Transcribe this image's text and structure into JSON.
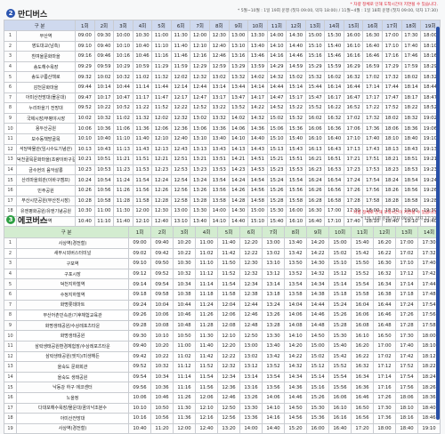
{
  "section1": {
    "number": "2",
    "title": "만디버스",
    "badge_color": "#2c55b0",
    "note_line1": "* 차량 정체로 인해 도착시간이 지연될 수 있습니다.",
    "note_line2": "* 5월~10월 : 1일 19회 운행 (첫차 09:00, 막차 18:00) / 11월~4월 : 1일 18회 운행 (첫차 09:00, 막차 17:30)",
    "headers": [
      "구 분",
      "1회",
      "2회",
      "3회",
      "4회",
      "5회",
      "6회",
      "7회",
      "8회",
      "9회",
      "10회",
      "11회",
      "12회",
      "13회",
      "14회",
      "15회",
      "16회",
      "17회",
      "18회",
      "19회"
    ],
    "rows": [
      {
        "n": "1",
        "stop": "부산역",
        "t": [
          "09:00",
          "09:30",
          "10:00",
          "10:30",
          "11:00",
          "11:30",
          "12:00",
          "12:30",
          "13:00",
          "13:30",
          "14:00",
          "14:30",
          "15:00",
          "15:30",
          "16:00",
          "16:30",
          "17:00",
          "17:30",
          "18:00"
        ]
      },
      {
        "n": "2",
        "stop": "영도대교(남측)",
        "t": [
          "09:10",
          "09:40",
          "10:10",
          "10:40",
          "11:10",
          "11:40",
          "12:10",
          "12:40",
          "13:10",
          "13:40",
          "14:10",
          "14:40",
          "15:10",
          "15:40",
          "16:10",
          "16:40",
          "17:10",
          "17:40",
          "18:10"
        ]
      },
      {
        "n": "3",
        "stop": "흰여울문화마을",
        "t": [
          "09:16",
          "09:46",
          "10:16",
          "10:46",
          "11:16",
          "11:46",
          "12:16",
          "12:46",
          "13:16",
          "13:46",
          "14:16",
          "14:46",
          "15:16",
          "15:46",
          "16:16",
          "16:46",
          "17:16",
          "17:46",
          "18:16"
        ]
      },
      {
        "n": "4",
        "stop": "송도해수욕장",
        "t": [
          "09:29",
          "09:59",
          "10:29",
          "10:59",
          "11:29",
          "11:59",
          "12:29",
          "12:59",
          "13:29",
          "13:59",
          "14:29",
          "14:59",
          "15:29",
          "15:59",
          "16:29",
          "16:59",
          "17:29",
          "17:59",
          "18:29"
        ]
      },
      {
        "n": "5",
        "stop": "송도구름산책로",
        "t": [
          "09:32",
          "10:02",
          "10:32",
          "11:02",
          "11:32",
          "12:02",
          "12:32",
          "13:02",
          "13:32",
          "14:02",
          "14:32",
          "15:02",
          "15:32",
          "16:02",
          "16:32",
          "17:02",
          "17:32",
          "18:02",
          "18:32"
        ]
      },
      {
        "n": "6",
        "stop": "감천문화마을",
        "t": [
          "09:44",
          "10:14",
          "10:44",
          "11:14",
          "11:44",
          "12:14",
          "12:44",
          "13:14",
          "13:44",
          "14:14",
          "14:44",
          "15:14",
          "15:44",
          "16:14",
          "16:44",
          "17:14",
          "17:44",
          "18:14",
          "18:44"
        ]
      },
      {
        "n": "7",
        "stop": "아미산전망대(몰운대)",
        "t": [
          "09:47",
          "10:17",
          "10:47",
          "11:17",
          "11:47",
          "12:17",
          "12:47",
          "13:17",
          "13:47",
          "14:17",
          "14:47",
          "15:17",
          "15:47",
          "16:17",
          "16:47",
          "17:17",
          "17:47",
          "18:17",
          "18:47"
        ]
      },
      {
        "n": "8",
        "stop": "누리마을기 전망대",
        "t": [
          "09:52",
          "10:22",
          "10:52",
          "11:22",
          "11:52",
          "12:22",
          "12:52",
          "13:22",
          "13:52",
          "14:22",
          "14:52",
          "15:22",
          "15:52",
          "16:22",
          "16:52",
          "17:22",
          "17:52",
          "18:22",
          "18:52"
        ]
      },
      {
        "n": "9",
        "stop": "국제시장/부평야시장",
        "t": [
          "10:02",
          "10:32",
          "11:02",
          "11:32",
          "12:02",
          "12:32",
          "13:02",
          "13:32",
          "14:02",
          "14:32",
          "15:02",
          "15:32",
          "16:02",
          "16:32",
          "17:02",
          "17:32",
          "18:02",
          "18:32",
          "19:02"
        ]
      },
      {
        "n": "10",
        "stop": "용두산공원",
        "t": [
          "10:06",
          "10:36",
          "11:06",
          "11:36",
          "12:06",
          "12:36",
          "13:06",
          "13:36",
          "14:06",
          "14:36",
          "15:06",
          "15:36",
          "16:06",
          "16:36",
          "17:06",
          "17:36",
          "18:06",
          "18:36",
          "19:06"
        ]
      },
      {
        "n": "11",
        "stop": "보수동책방골목",
        "t": [
          "10:10",
          "10:40",
          "11:10",
          "11:40",
          "12:10",
          "12:40",
          "13:10",
          "13:40",
          "14:10",
          "14:40",
          "15:10",
          "15:40",
          "16:10",
          "16:40",
          "17:10",
          "17:40",
          "18:10",
          "18:40",
          "19:10"
        ]
      },
      {
        "n": "12",
        "stop": "석당박물관(임시수도기념관)",
        "t": [
          "10:13",
          "10:43",
          "11:13",
          "11:43",
          "12:13",
          "12:43",
          "13:13",
          "13:43",
          "14:13",
          "14:43",
          "15:13",
          "15:43",
          "16:13",
          "16:43",
          "17:13",
          "17:43",
          "18:13",
          "18:43",
          "19:13"
        ]
      },
      {
        "n": "13",
        "stop": "덕천골목문화마을(초량이바구길)",
        "t": [
          "10:21",
          "10:51",
          "11:21",
          "11:51",
          "12:21",
          "12:51",
          "13:21",
          "13:51",
          "14:21",
          "14:51",
          "15:21",
          "15:51",
          "16:21",
          "16:51",
          "17:21",
          "17:51",
          "18:21",
          "18:51",
          "19:21"
        ]
      },
      {
        "n": "14",
        "stop": "금수현의 음악살롱",
        "t": [
          "10:23",
          "10:53",
          "11:23",
          "11:53",
          "12:23",
          "12:53",
          "13:23",
          "13:53",
          "14:23",
          "14:53",
          "15:23",
          "15:53",
          "16:23",
          "16:53",
          "17:23",
          "17:53",
          "18:23",
          "18:53",
          "19:23"
        ]
      },
      {
        "n": "15",
        "stop": "산리마을회관(이바구캠프)",
        "t": [
          "10:24",
          "10:54",
          "11:24",
          "11:54",
          "12:24",
          "12:54",
          "13:24",
          "13:54",
          "14:24",
          "14:54",
          "15:24",
          "15:54",
          "16:24",
          "16:54",
          "17:24",
          "17:54",
          "18:24",
          "18:54",
          "19:24"
        ]
      },
      {
        "n": "16",
        "stop": "민주공원",
        "t": [
          "10:26",
          "10:56",
          "11:26",
          "11:56",
          "12:26",
          "12:56",
          "13:26",
          "13:56",
          "14:26",
          "14:56",
          "15:26",
          "15:56",
          "16:26",
          "16:56",
          "17:26",
          "17:56",
          "18:26",
          "18:56",
          "19:26"
        ]
      },
      {
        "n": "17",
        "stop": "부산시민공원(부산진시장)",
        "t": [
          "10:28",
          "10:58",
          "11:28",
          "11:58",
          "12:28",
          "12:58",
          "13:28",
          "13:58",
          "14:28",
          "14:58",
          "15:28",
          "15:58",
          "16:28",
          "16:58",
          "17:28",
          "17:58",
          "18:28",
          "18:58",
          "19:28"
        ]
      },
      {
        "n": "18",
        "stop": "유엔평화공원/유엔기념공원",
        "t": [
          "10:30",
          "11:00",
          "11:30",
          "12:00",
          "12:30",
          "13:00",
          "13:30",
          "14:00",
          "14:30",
          "15:00",
          "15:30",
          "16:00",
          "16:30",
          "17:00",
          "17:30",
          "18:00",
          "18:30",
          "19:00",
          "19:30"
        ]
      },
      {
        "n": "19",
        "stop": "부산역",
        "t": [
          "10:40",
          "11:10",
          "11:40",
          "12:10",
          "12:40",
          "13:10",
          "13:40",
          "14:10",
          "14:40",
          "15:10",
          "15:40",
          "16:10",
          "16:40",
          "17:10",
          "17:40",
          "18:10",
          "18:40",
          "19:10",
          "19:40"
        ]
      }
    ]
  },
  "section2": {
    "number": "3",
    "title": "에코버스",
    "badge_color": "#2ea043",
    "note_line1": "* 차량 정체로 인해 도착시간이 지연될 수 있습니다.",
    "note_line2": "* 1일 14회 운행 (첫차 09:00, 막차 17:30)",
    "headers": [
      "구 분",
      "1회",
      "2회",
      "3회",
      "4회",
      "5회",
      "6회",
      "7회",
      "8회",
      "9회",
      "10회",
      "11회",
      "12회",
      "13회",
      "14회"
    ],
    "rows": [
      {
        "n": "1",
        "stop": "사상역(경전철)",
        "t": [
          "09:00",
          "09:40",
          "10:20",
          "11:00",
          "11:40",
          "12:20",
          "13:00",
          "13:40",
          "14:20",
          "15:00",
          "15:40",
          "16:20",
          "17:00",
          "17:30"
        ]
      },
      {
        "n": "2",
        "stop": "새부시외버스터미널",
        "t": [
          "09:02",
          "09:42",
          "10:22",
          "11:02",
          "11:42",
          "12:22",
          "13:02",
          "13:42",
          "14:22",
          "15:02",
          "15:42",
          "16:22",
          "17:02",
          "17:32"
        ]
      },
      {
        "n": "3",
        "stop": "구포역",
        "t": [
          "09:10",
          "09:50",
          "10:30",
          "11:10",
          "11:50",
          "12:30",
          "13:10",
          "13:50",
          "14:30",
          "15:10",
          "15:50",
          "16:30",
          "17:10",
          "17:40"
        ]
      },
      {
        "n": "4",
        "stop": "구포시장",
        "t": [
          "09:12",
          "09:52",
          "10:32",
          "11:12",
          "11:52",
          "12:32",
          "13:12",
          "13:52",
          "14:32",
          "15:12",
          "15:52",
          "16:32",
          "17:12",
          "17:42"
        ]
      },
      {
        "n": "5",
        "stop": "덕천지하철역",
        "t": [
          "09:14",
          "09:54",
          "10:34",
          "11:14",
          "11:54",
          "12:34",
          "13:14",
          "13:54",
          "14:34",
          "15:14",
          "15:54",
          "16:34",
          "17:14",
          "17:44"
        ]
      },
      {
        "n": "6",
        "stop": "수정지하철역",
        "t": [
          "09:18",
          "09:58",
          "10:38",
          "11:18",
          "11:58",
          "12:38",
          "13:18",
          "13:58",
          "14:38",
          "15:18",
          "15:58",
          "16:38",
          "17:18",
          "17:48"
        ]
      },
      {
        "n": "7",
        "stop": "화명롯데마트",
        "t": [
          "09:24",
          "10:04",
          "10:44",
          "11:24",
          "12:04",
          "12:44",
          "13:24",
          "14:04",
          "14:44",
          "15:24",
          "16:04",
          "16:44",
          "17:24",
          "17:54"
        ]
      },
      {
        "n": "8",
        "stop": "부산어촌민속관/기후체험교육관",
        "t": [
          "09:26",
          "10:06",
          "10:46",
          "11:26",
          "12:06",
          "12:46",
          "13:26",
          "14:06",
          "14:46",
          "15:26",
          "16:06",
          "16:46",
          "17:26",
          "17:56"
        ]
      },
      {
        "n": "9",
        "stop": "화명생태공원/수상레포츠타운",
        "t": [
          "09:28",
          "10:08",
          "10:48",
          "11:28",
          "12:08",
          "12:48",
          "13:28",
          "14:08",
          "14:48",
          "15:28",
          "16:08",
          "16:48",
          "17:28",
          "17:58"
        ]
      },
      {
        "n": "10",
        "stop": "화명생태공원",
        "t": [
          "09:30",
          "10:10",
          "10:50",
          "11:30",
          "12:10",
          "12:50",
          "13:30",
          "14:10",
          "14:50",
          "15:30",
          "16:10",
          "16:50",
          "17:30",
          "18:00"
        ]
      },
      {
        "n": "11",
        "stop": "삼락생태공원환경체험장/수상레포츠타운",
        "t": [
          "09:40",
          "10:20",
          "11:00",
          "11:40",
          "12:20",
          "13:00",
          "13:40",
          "14:20",
          "15:00",
          "15:40",
          "16:20",
          "17:00",
          "17:40",
          "18:10"
        ]
      },
      {
        "n": "12",
        "stop": "삼락생태공원(엣지)/미생해든",
        "t": [
          "09:42",
          "10:22",
          "11:02",
          "11:42",
          "12:22",
          "13:02",
          "13:42",
          "14:22",
          "15:02",
          "15:42",
          "16:22",
          "17:02",
          "17:42",
          "18:12"
        ]
      },
      {
        "n": "13",
        "stop": "을숙도 문화회관",
        "t": [
          "09:52",
          "10:32",
          "11:12",
          "11:52",
          "12:32",
          "13:12",
          "13:52",
          "14:32",
          "15:12",
          "15:52",
          "16:32",
          "17:12",
          "17:52",
          "18:22"
        ]
      },
      {
        "n": "14",
        "stop": "을숙도 생태공원",
        "t": [
          "09:54",
          "10:34",
          "11:14",
          "11:54",
          "12:34",
          "13:14",
          "13:54",
          "14:34",
          "15:14",
          "15:54",
          "16:34",
          "17:14",
          "17:54",
          "18:24"
        ]
      },
      {
        "n": "15",
        "stop": "낙동강 하구 에코센터",
        "t": [
          "09:56",
          "10:36",
          "11:16",
          "11:56",
          "12:36",
          "13:16",
          "13:56",
          "14:36",
          "15:16",
          "15:56",
          "16:36",
          "17:16",
          "17:56",
          "18:26"
        ]
      },
      {
        "n": "16",
        "stop": "노을정",
        "t": [
          "10:06",
          "10:46",
          "11:26",
          "12:06",
          "12:46",
          "13:26",
          "14:06",
          "14:46",
          "15:26",
          "16:06",
          "16:46",
          "17:26",
          "18:06",
          "18:36"
        ]
      },
      {
        "n": "17",
        "stop": "다대포해수욕장/몰운대/꿈의낙조분수",
        "t": [
          "10:10",
          "10:50",
          "11:30",
          "12:10",
          "12:50",
          "13:30",
          "14:10",
          "14:50",
          "15:30",
          "16:10",
          "16:50",
          "17:30",
          "18:10",
          "18:40"
        ]
      },
      {
        "n": "18",
        "stop": "아미산전망대",
        "t": [
          "10:16",
          "10:56",
          "11:36",
          "12:16",
          "12:56",
          "13:36",
          "14:16",
          "14:56",
          "15:36",
          "16:16",
          "16:56",
          "17:36",
          "18:16",
          "18:46"
        ]
      },
      {
        "n": "19",
        "stop": "사상역(경전철)",
        "t": [
          "10:40",
          "11:20",
          "12:00",
          "12:40",
          "13:20",
          "14:00",
          "14:40",
          "15:20",
          "16:00",
          "16:40",
          "17:20",
          "18:00",
          "18:40",
          "19:10"
        ]
      }
    ]
  }
}
